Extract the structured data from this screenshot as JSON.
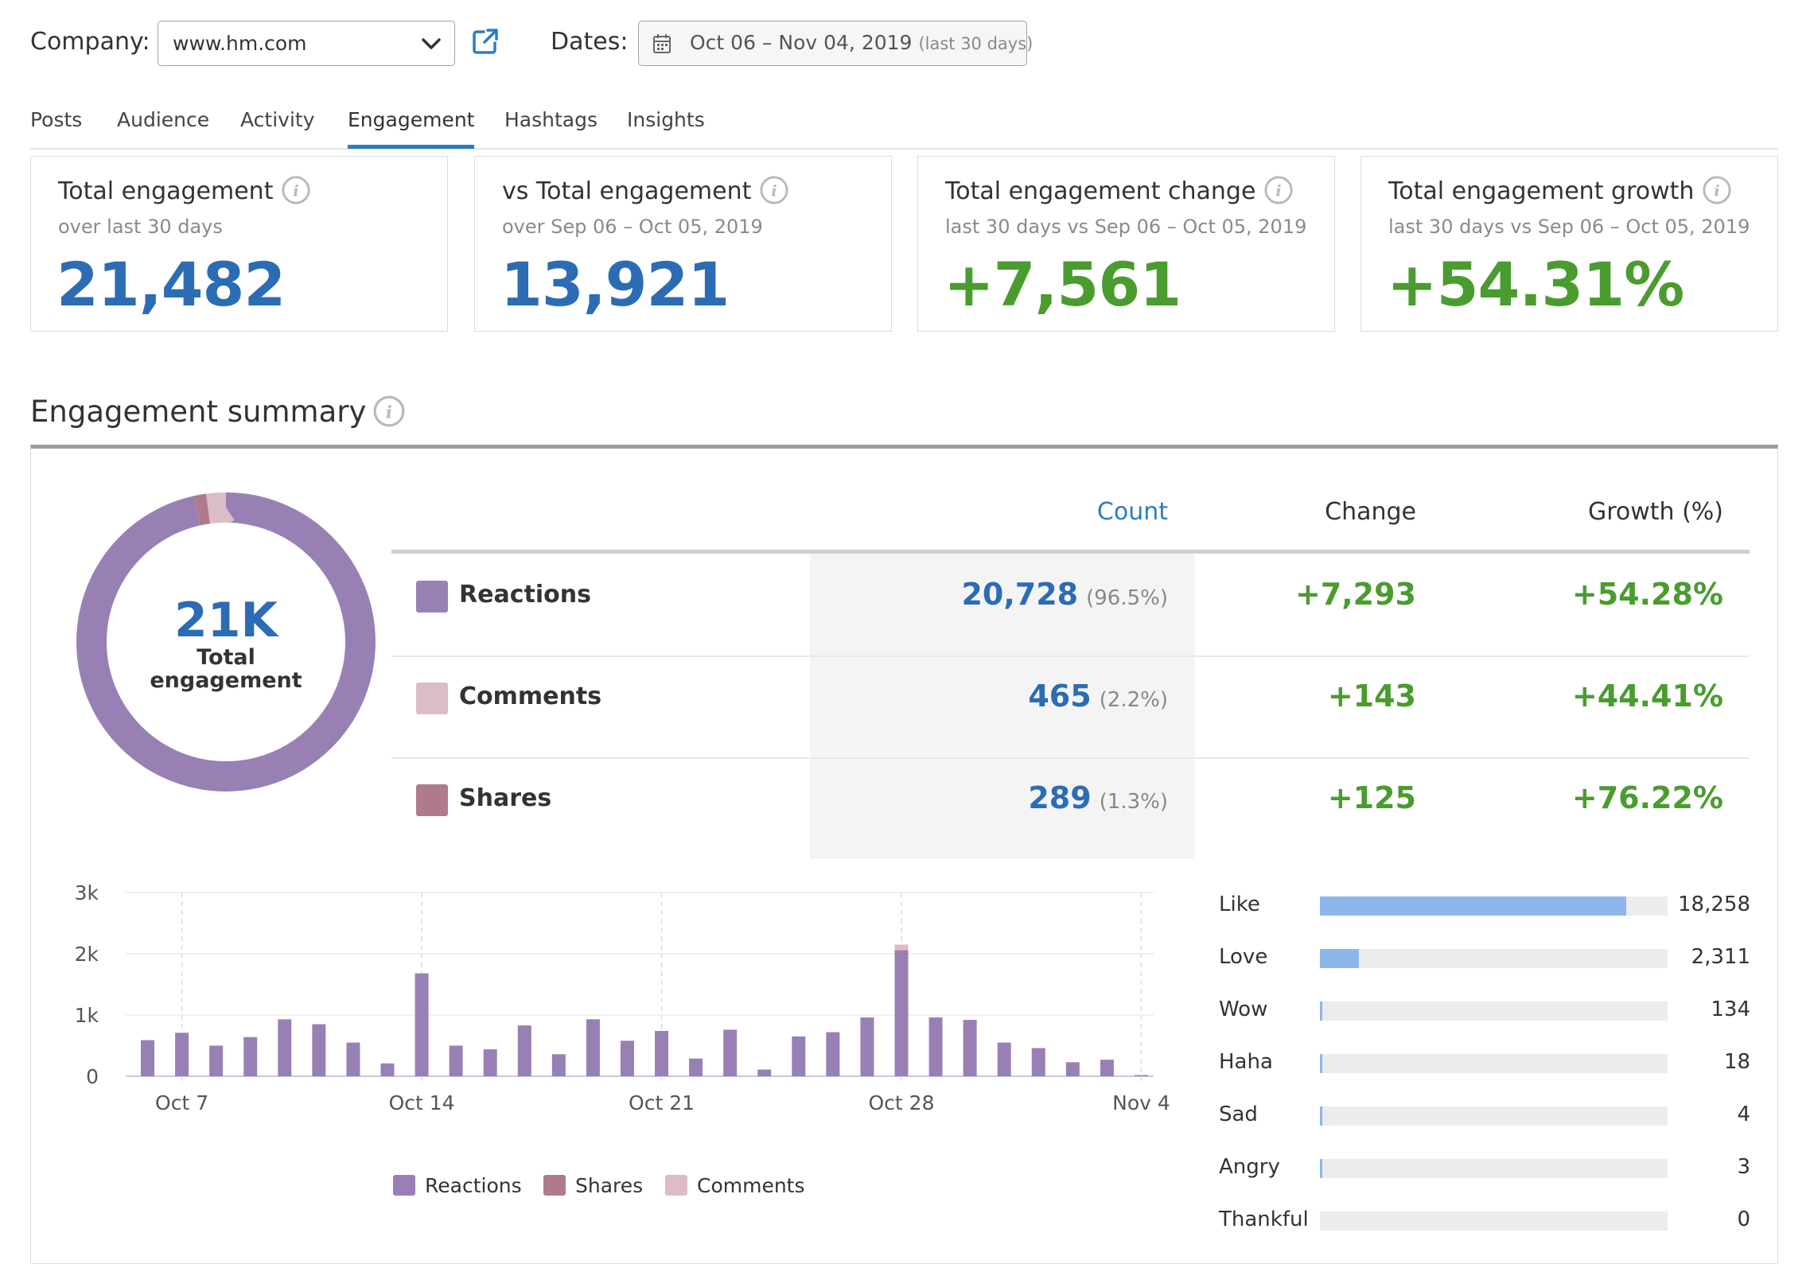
{
  "toolbar": {
    "company_label": "Company:",
    "company_value": "www.hm.com",
    "dates_label": "Dates:",
    "date_range": "Oct 06 – Nov 04, 2019",
    "date_hint": "(last 30 days)"
  },
  "tabs": [
    "Posts",
    "Audience",
    "Activity",
    "Engagement",
    "Hashtags",
    "Insights"
  ],
  "active_tab": "Engagement",
  "kpis": [
    {
      "title": "Total engagement",
      "subtitle": "over last 30 days",
      "value": "21,482",
      "color": "#2b6cb5"
    },
    {
      "title": "vs Total engagement",
      "subtitle": "over Sep 06 – Oct 05, 2019",
      "value": "13,921",
      "color": "#2b6cb5"
    },
    {
      "title": "Total engagement change",
      "subtitle": "last 30 days vs Sep 06 – Oct 05, 2019",
      "value": "+7,561",
      "color": "#4a9c2f"
    },
    {
      "title": "Total engagement growth",
      "subtitle": "last 30 days vs Sep 06 – Oct 05, 2019",
      "value": "+54.31%",
      "color": "#4a9c2f"
    }
  ],
  "summary": {
    "title": "Engagement summary",
    "donut": {
      "value": "21K",
      "label_line1": "Total",
      "label_line2": "engagement",
      "segments": [
        {
          "name": "Reactions",
          "value": 20728,
          "color": "#9880b5"
        },
        {
          "name": "Shares",
          "value": 289,
          "color": "#b07a8e"
        },
        {
          "name": "Comments",
          "value": 465,
          "color": "#dcbcc9"
        }
      ]
    },
    "headers": {
      "count": "Count",
      "change": "Change",
      "growth": "Growth (%)"
    },
    "rows": [
      {
        "label": "Reactions",
        "count": "20,728",
        "pct": "(96.5%)",
        "change": "+7,293",
        "growth": "+54.28%",
        "color": "#9880b5"
      },
      {
        "label": "Comments",
        "count": "465",
        "pct": "(2.2%)",
        "change": "+143",
        "growth": "+44.41%",
        "color": "#dcbcc9"
      },
      {
        "label": "Shares",
        "count": "289",
        "pct": "(1.3%)",
        "change": "+125",
        "growth": "+76.22%",
        "color": "#b07a8e"
      }
    ]
  },
  "chart_data": {
    "type": "bar",
    "stacked": true,
    "x_ticks": [
      "Oct 7",
      "Oct 14",
      "Oct 21",
      "Oct 28",
      "Nov 4"
    ],
    "y_ticks": [
      "3k",
      "2k",
      "1k",
      "0"
    ],
    "ylim": [
      0,
      3000
    ],
    "grid": true,
    "legend_position": "bottom",
    "categories": [
      "Oct 6",
      "Oct 7",
      "Oct 8",
      "Oct 9",
      "Oct 10",
      "Oct 11",
      "Oct 12",
      "Oct 13",
      "Oct 14",
      "Oct 15",
      "Oct 16",
      "Oct 17",
      "Oct 18",
      "Oct 19",
      "Oct 20",
      "Oct 21",
      "Oct 22",
      "Oct 23",
      "Oct 24",
      "Oct 25",
      "Oct 26",
      "Oct 27",
      "Oct 28",
      "Oct 29",
      "Oct 30",
      "Oct 31",
      "Nov 1",
      "Nov 2",
      "Nov 3",
      "Nov 4"
    ],
    "series": [
      {
        "name": "Reactions",
        "color": "#9880b5",
        "values": [
          590,
          710,
          500,
          640,
          930,
          850,
          550,
          210,
          1680,
          500,
          440,
          830,
          360,
          930,
          580,
          740,
          290,
          760,
          110,
          650,
          720,
          960,
          2040,
          960,
          920,
          550,
          460,
          230,
          270,
          20
        ]
      },
      {
        "name": "Shares",
        "color": "#b07a8e",
        "values": [
          0,
          0,
          0,
          0,
          0,
          0,
          0,
          0,
          0,
          0,
          0,
          0,
          0,
          0,
          0,
          0,
          0,
          0,
          0,
          0,
          0,
          0,
          20,
          0,
          0,
          0,
          0,
          0,
          0,
          0
        ]
      },
      {
        "name": "Comments",
        "color": "#dcbcc9",
        "values": [
          0,
          0,
          0,
          0,
          0,
          0,
          0,
          0,
          0,
          0,
          0,
          0,
          0,
          0,
          0,
          0,
          0,
          0,
          0,
          0,
          0,
          0,
          90,
          0,
          0,
          0,
          0,
          0,
          0,
          0
        ]
      }
    ]
  },
  "legend": [
    "Reactions",
    "Shares",
    "Comments"
  ],
  "reactions_breakdown": [
    {
      "label": "Like",
      "value": 18258,
      "display": "18,258"
    },
    {
      "label": "Love",
      "value": 2311,
      "display": "2,311"
    },
    {
      "label": "Wow",
      "value": 134,
      "display": "134"
    },
    {
      "label": "Haha",
      "value": 18,
      "display": "18"
    },
    {
      "label": "Sad",
      "value": 4,
      "display": "4"
    },
    {
      "label": "Angry",
      "value": 3,
      "display": "3"
    },
    {
      "label": "Thankful",
      "value": 0,
      "display": "0"
    }
  ],
  "reactions_breakdown_max": 20728
}
